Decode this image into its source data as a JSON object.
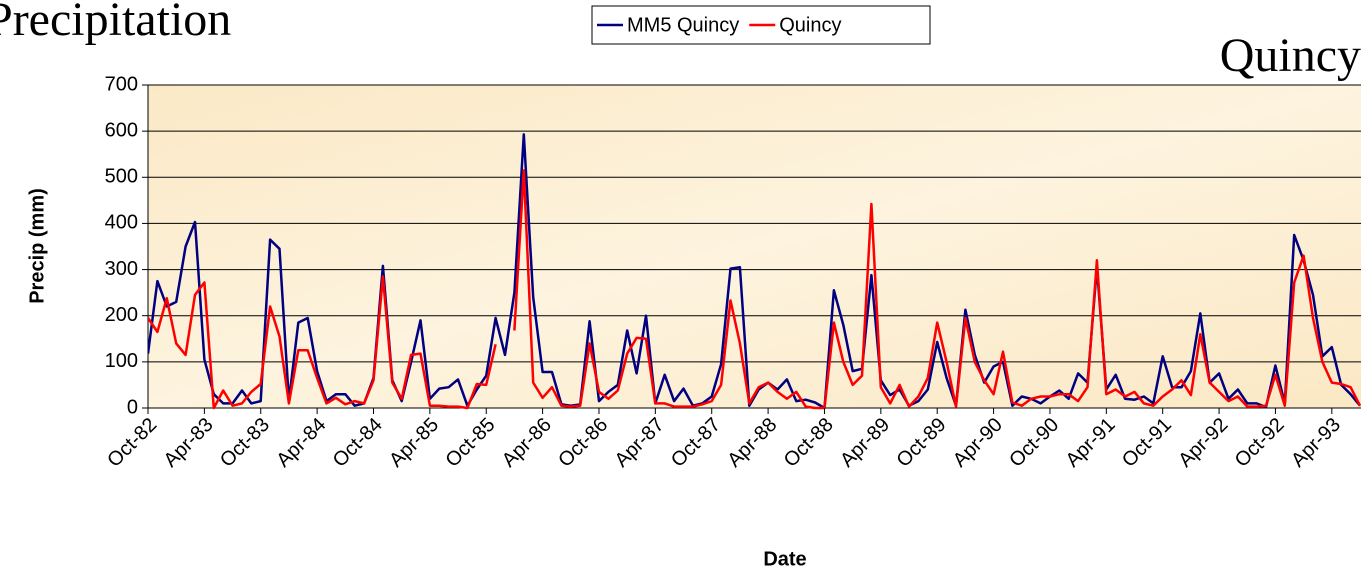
{
  "chart_data": {
    "type": "line",
    "title": "Precipitation",
    "subtitle": "Quincy",
    "x_label": "Date",
    "y_label": "Precip (mm)",
    "categories": [
      "Oct-82",
      null,
      null,
      null,
      null,
      null,
      "Apr-83",
      null,
      null,
      null,
      null,
      null,
      "Oct-83",
      null,
      null,
      null,
      null,
      null,
      "Apr-84",
      null,
      null,
      null,
      null,
      null,
      "Oct-84",
      null,
      null,
      null,
      null,
      null,
      "Apr-85",
      null,
      null,
      null,
      null,
      null,
      "Oct-85",
      null,
      null,
      null,
      null,
      null,
      "Apr-86",
      null,
      null,
      null,
      null,
      null,
      "Oct-86",
      null,
      null,
      null,
      null,
      null,
      "Apr-87",
      null,
      null,
      null,
      null,
      null,
      "Oct-87",
      null,
      null,
      null,
      null,
      null,
      "Apr-88",
      null,
      null,
      null,
      null,
      null,
      "Oct-88",
      null,
      null,
      null,
      null,
      null,
      "Apr-89",
      null,
      null,
      null,
      null,
      null,
      "Oct-89",
      null,
      null,
      null,
      null,
      null,
      "Apr-90",
      null,
      null,
      null,
      null,
      null,
      "Oct-90",
      null,
      null,
      null,
      null,
      null,
      "Apr-91",
      null,
      null,
      null,
      null,
      null,
      "Oct-91",
      null,
      null,
      null,
      null,
      null,
      "Apr-92",
      null,
      null,
      null,
      null,
      null,
      "Oct-92",
      null,
      null,
      null,
      null,
      null,
      "Apr-93",
      null,
      null,
      null
    ],
    "series": [
      {
        "name": "MM5 Quincy",
        "color": "#000080",
        "values": [
          118,
          275,
          220,
          230,
          350,
          403,
          105,
          30,
          10,
          10,
          38,
          10,
          15,
          365,
          345,
          15,
          185,
          195,
          80,
          15,
          30,
          30,
          5,
          10,
          65,
          308,
          60,
          15,
          100,
          190,
          20,
          42,
          45,
          62,
          5,
          40,
          70,
          195,
          115,
          250,
          593,
          240,
          78,
          78,
          8,
          5,
          8,
          188,
          15,
          35,
          50,
          168,
          75,
          200,
          10,
          72,
          15,
          42,
          5,
          10,
          25,
          95,
          302,
          305,
          5,
          40,
          55,
          40,
          62,
          15,
          18,
          12,
          0,
          255,
          180,
          80,
          85,
          288,
          60,
          28,
          40,
          5,
          15,
          40,
          143,
          65,
          5,
          213,
          115,
          55,
          90,
          100,
          5,
          25,
          20,
          10,
          25,
          38,
          20,
          75,
          55,
          305,
          40,
          72,
          20,
          18,
          25,
          10,
          112,
          45,
          45,
          80,
          205,
          55,
          75,
          20,
          40,
          10,
          10,
          2,
          92,
          10,
          375,
          320,
          245,
          112,
          132,
          50,
          30,
          5
        ]
      },
      {
        "name": "Quincy",
        "color": "#ff0000",
        "values": [
          195,
          165,
          238,
          140,
          115,
          245,
          272,
          0,
          38,
          5,
          10,
          35,
          52,
          220,
          155,
          10,
          125,
          125,
          65,
          10,
          22,
          8,
          15,
          10,
          60,
          285,
          55,
          20,
          115,
          118,
          5,
          5,
          3,
          3,
          0,
          52,
          50,
          138,
          null,
          168,
          515,
          55,
          22,
          45,
          5,
          3,
          5,
          140,
          35,
          20,
          38,
          118,
          152,
          150,
          10,
          10,
          3,
          3,
          3,
          8,
          15,
          50,
          233,
          140,
          10,
          45,
          55,
          35,
          20,
          35,
          3,
          0,
          0,
          185,
          100,
          50,
          70,
          442,
          45,
          10,
          50,
          3,
          25,
          65,
          185,
          100,
          3,
          195,
          100,
          60,
          30,
          122,
          12,
          5,
          20,
          25,
          25,
          30,
          30,
          15,
          45,
          320,
          30,
          40,
          25,
          35,
          10,
          5,
          25,
          40,
          60,
          28,
          160,
          55,
          35,
          15,
          25,
          3,
          3,
          5,
          72,
          5,
          272,
          330,
          195,
          100,
          55,
          52,
          45,
          5
        ]
      }
    ],
    "ylim": [
      0,
      700
    ],
    "yticks": [
      0,
      100,
      200,
      300,
      400,
      500,
      600,
      700
    ],
    "grid": true
  }
}
